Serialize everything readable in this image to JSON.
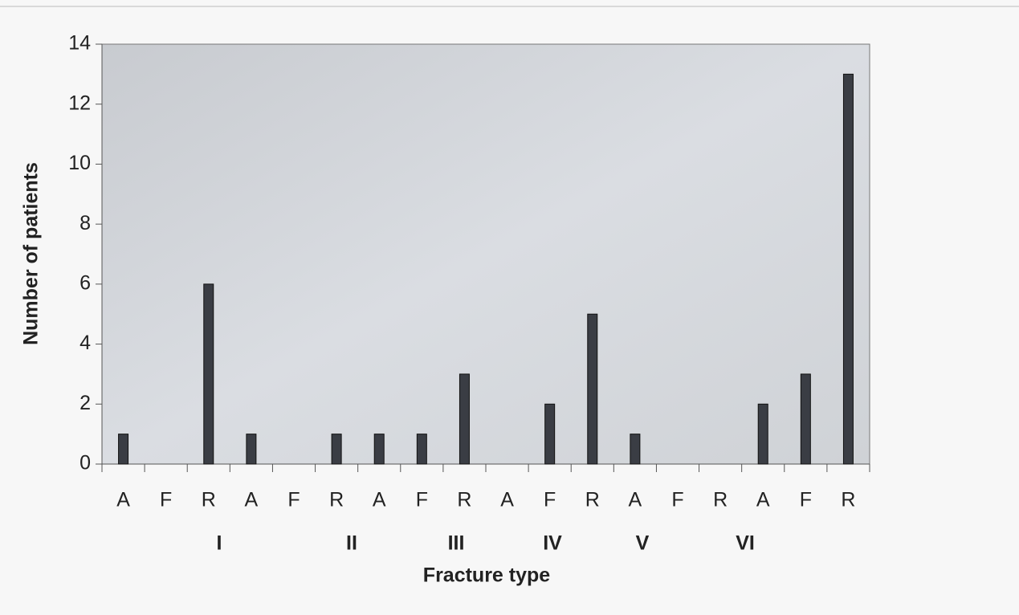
{
  "chart_data": {
    "type": "bar",
    "categories": [
      "A",
      "F",
      "R",
      "A",
      "F",
      "R",
      "A",
      "F",
      "R",
      "A",
      "F",
      "R",
      "A",
      "F",
      "R",
      "A",
      "F",
      "R"
    ],
    "values": [
      1,
      0,
      6,
      1,
      0,
      1,
      1,
      1,
      3,
      0,
      2,
      5,
      1,
      0,
      0,
      2,
      3,
      13
    ],
    "color": "#3a3d44",
    "group_labels": [
      "I",
      "II",
      "III",
      "IV",
      "V",
      "VI"
    ],
    "xlabel": "Fracture type",
    "ylabel": "Number of patients",
    "ylim": [
      0,
      14
    ],
    "yticks": [
      0,
      2,
      4,
      6,
      8,
      10,
      12,
      14
    ]
  }
}
